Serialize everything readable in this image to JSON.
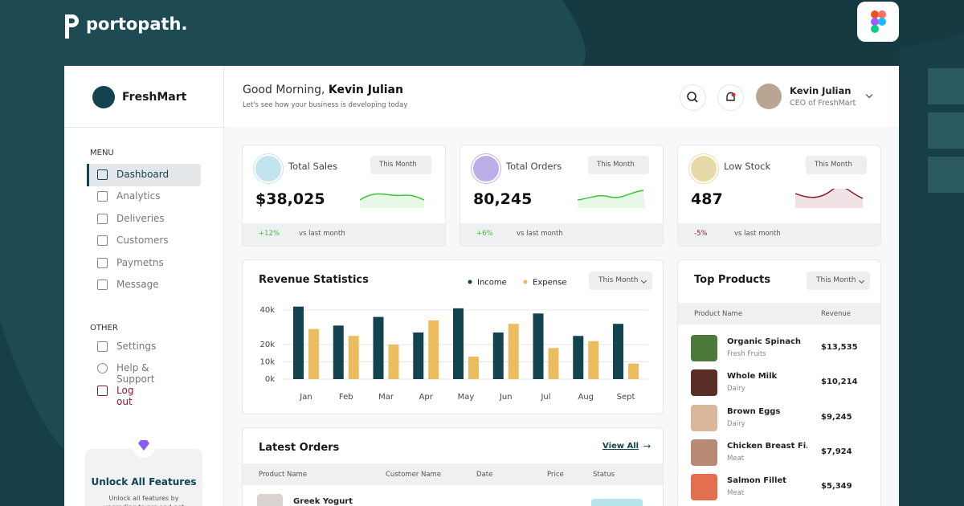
{
  "brand": "portopath.",
  "app": {
    "name": "FreshMart"
  },
  "header": {
    "greeting": "Good Morning,",
    "user_name": "Kevin Julian",
    "subtitle": "Let's see how your business is developing today",
    "profile_name": "Kevin Julian",
    "profile_role": "CEO of FreshMart"
  },
  "sidebar": {
    "menu_title": "MENU",
    "menu": [
      "Dashboard",
      "Analytics",
      "Deliveries",
      "Customers",
      "Paymetns",
      "Message"
    ],
    "other_title": "OTHER",
    "other": [
      "Settings",
      "Help & Support",
      "Log out"
    ],
    "promo": {
      "title": "Unlock All Features",
      "text": "Unlock all features by upgrading to pro and get"
    }
  },
  "stats": [
    {
      "title": "Total Sales",
      "period": "This Month",
      "value": "$38,025",
      "change": "+12%",
      "change_note": "vs last month"
    },
    {
      "title": "Total Orders",
      "period": "This Month",
      "value": "80,245",
      "change": "+6%",
      "change_note": "vs last month"
    },
    {
      "title": "Low Stock",
      "period": "This Month",
      "value": "487",
      "change": "-5%",
      "change_note": "vs last month"
    }
  ],
  "chart_data": {
    "type": "bar",
    "title": "Revenue Statistics",
    "period": "This Month",
    "categories": [
      "Jan",
      "Feb",
      "Mar",
      "Apr",
      "May",
      "Jun",
      "Jul",
      "Aug",
      "Sept"
    ],
    "series": [
      {
        "name": "Income",
        "color": "#12434f",
        "values": [
          42000,
          31000,
          36000,
          27000,
          41000,
          27000,
          38000,
          25000,
          32000
        ]
      },
      {
        "name": "Expense",
        "color": "#ecbd5f",
        "values": [
          29000,
          25000,
          20000,
          34000,
          13000,
          32000,
          18000,
          22000,
          9000
        ]
      }
    ],
    "ylim": [
      0,
      45000
    ],
    "yticks": [
      {
        "value": 0,
        "label": "0k"
      },
      {
        "value": 10000,
        "label": "10k"
      },
      {
        "value": 20000,
        "label": "20k"
      },
      {
        "value": 40000,
        "label": "40k"
      }
    ],
    "grid": true
  },
  "top_products": {
    "title": "Top Products",
    "period": "This Month",
    "columns": [
      "Product Name",
      "Revenue"
    ],
    "rows": [
      {
        "name": "Organic Spinach",
        "category": "Fresh Fruits",
        "revenue": "$13,535"
      },
      {
        "name": "Whole Milk",
        "category": "Dairy",
        "revenue": "$10,214"
      },
      {
        "name": "Brown Eggs",
        "category": "Dairy",
        "revenue": "$9,245"
      },
      {
        "name": "Chicken Breast Fi...",
        "category": "Meat",
        "revenue": "$7,924"
      },
      {
        "name": "Salmon Fillet",
        "category": "Meat",
        "revenue": "$5,349"
      }
    ]
  },
  "latest_orders": {
    "title": "Latest Orders",
    "link": "View All",
    "columns": [
      "Product Name",
      "Customer Name",
      "Date",
      "Price",
      "Status"
    ],
    "rows": [
      {
        "product": "Greek Yogurt"
      }
    ]
  }
}
